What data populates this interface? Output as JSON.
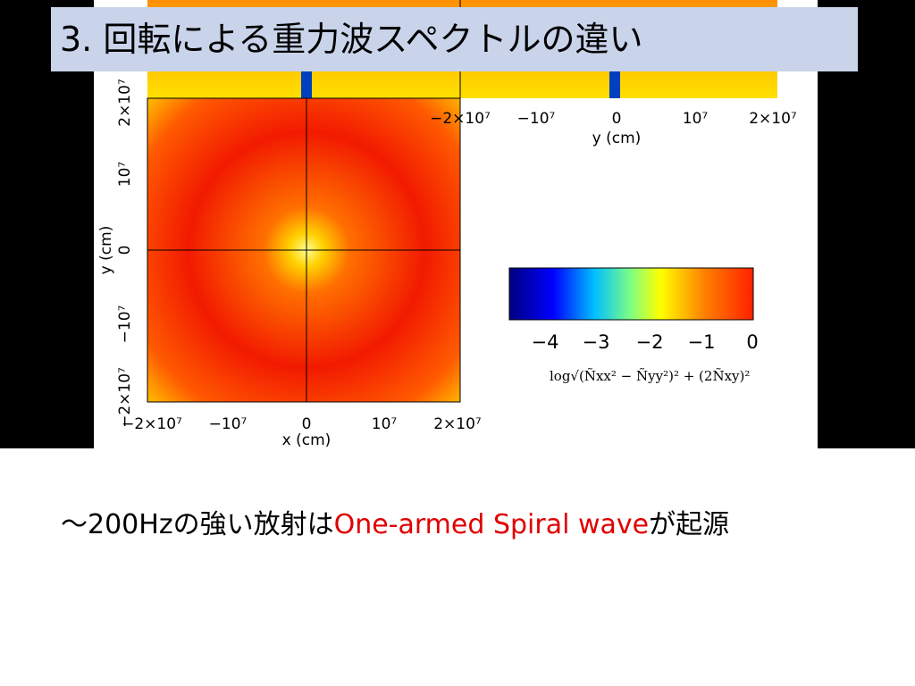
{
  "title": "3. 回転による重力波スペクトルの違い",
  "figure": {
    "top_x_ticks": [
      "−2×10⁷",
      "−10⁷",
      "0",
      "10⁷",
      "2×10⁷"
    ],
    "top_x_label": "y (cm)",
    "x_ticks": [
      "−2×10⁷",
      "−10⁷",
      "0",
      "10⁷",
      "2×10⁷"
    ],
    "x_label": "x (cm)",
    "y_ticks": [
      "−2×10⁷",
      "−10⁷",
      "0",
      "10⁷",
      "2×10⁷"
    ],
    "y_label": "y (cm)",
    "colorbar_ticks": [
      "−4",
      "−3",
      "−2",
      "−1",
      "0"
    ],
    "colorbar_label": "log√(Ñxx² − Ñyy²)² + (2Ñxy)²"
  },
  "caption": {
    "prefix": "～200Hzの強い放射は",
    "highlight": "One-armed Spiral wave",
    "suffix": "が起源"
  }
}
